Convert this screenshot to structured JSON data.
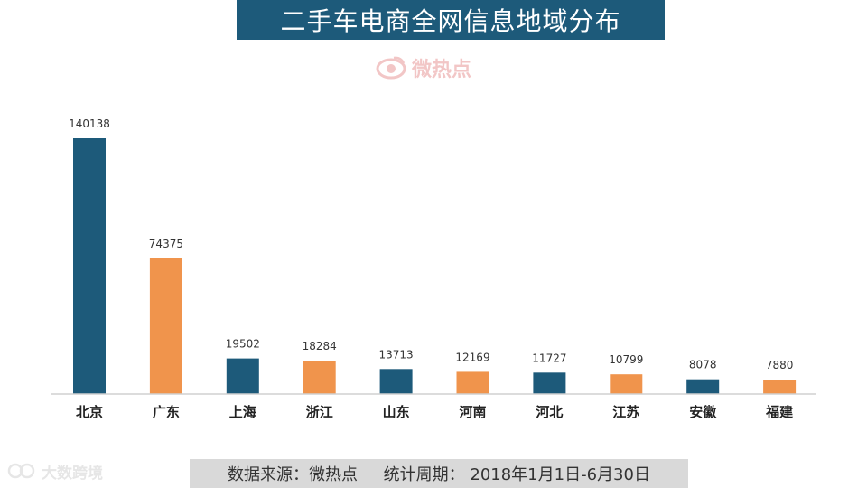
{
  "header": {
    "title": "二手车电商全网信息地域分布"
  },
  "watermark": {
    "text": "微热点"
  },
  "footer": {
    "source_label": "数据来源：微热点",
    "period_label": "统计周期：",
    "period_value": "2018年1月1日-6月30日"
  },
  "brand": {
    "text": "大数跨境"
  },
  "colors": {
    "navy": "#1d5a7a",
    "orange": "#f0944c",
    "title_bg": "#1d5a7a",
    "footer_bg": "#d9d9d9"
  },
  "chart_data": {
    "type": "bar",
    "title": "二手车电商全网信息地域分布",
    "categories": [
      "北京",
      "广东",
      "上海",
      "浙江",
      "山东",
      "河南",
      "河北",
      "江苏",
      "安徽",
      "福建"
    ],
    "values": [
      140138,
      74375,
      19502,
      18284,
      13713,
      12169,
      11727,
      10799,
      8078,
      7880
    ],
    "bar_colors": [
      "#1d5a7a",
      "#f0944c",
      "#1d5a7a",
      "#f0944c",
      "#1d5a7a",
      "#f0944c",
      "#1d5a7a",
      "#f0944c",
      "#1d5a7a",
      "#f0944c"
    ],
    "xlabel": "",
    "ylabel": "",
    "ylim": [
      0,
      140138
    ],
    "grid": false,
    "data_labels": true
  }
}
